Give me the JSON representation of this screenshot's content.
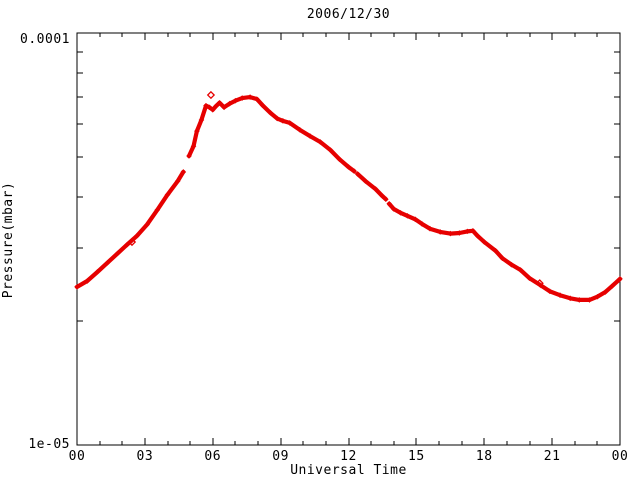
{
  "title": "2006/12/30",
  "axes": {
    "x": {
      "title": "Universal Time",
      "tick_labels": [
        "00",
        "03",
        "06",
        "09",
        "12",
        "15",
        "18",
        "21",
        "00"
      ],
      "major_hours": [
        0,
        3,
        6,
        9,
        12,
        15,
        18,
        21,
        24
      ],
      "minor_hours": [
        1,
        2,
        4,
        5,
        7,
        8,
        10,
        11,
        13,
        14,
        16,
        17,
        19,
        20,
        22,
        23
      ],
      "range_hours": [
        0,
        24
      ]
    },
    "y": {
      "title": "Pressure(mbar)",
      "scale": "log",
      "max_label": "0.0001",
      "min_label": "1e-05",
      "min": 1e-05,
      "max": 0.0001,
      "minor_tick_values": [
        2e-05,
        3e-05,
        4e-05,
        5e-05,
        6e-05,
        7e-05,
        8e-05,
        9e-05
      ]
    }
  },
  "colors": {
    "curve": "#e60000",
    "frame": "#000000",
    "background": "#ffffff"
  },
  "chart_data": {
    "type": "line",
    "title": "2006/12/30",
    "xlabel": "Universal Time",
    "ylabel": "Pressure(mbar)",
    "x_unit": "hours UT",
    "xlim": [
      0,
      24
    ],
    "ylim": [
      1e-05,
      0.0001
    ],
    "yscale": "log",
    "grid": false,
    "legend": "none",
    "marker": "diamond",
    "series": [
      {
        "name": "pressure",
        "color": "#e60000",
        "segments": [
          [
            [
              0,
              2.42e-05
            ],
            [
              0.45,
              2.5e-05
            ],
            [
              0.9,
              2.63e-05
            ],
            [
              1.35,
              2.77e-05
            ],
            [
              1.8,
              2.92e-05
            ],
            [
              2.2,
              3.06e-05
            ],
            [
              2.65,
              3.22e-05
            ],
            [
              3.1,
              3.43e-05
            ],
            [
              3.55,
              3.72e-05
            ],
            [
              4.0,
              4.05e-05
            ],
            [
              4.45,
              4.37e-05
            ],
            [
              4.7,
              4.6e-05
            ]
          ],
          [
            [
              4.95,
              5.03e-05
            ],
            [
              5.15,
              5.31e-05
            ],
            [
              5.3,
              5.78e-05
            ],
            [
              5.5,
              6.15e-05
            ],
            [
              5.7,
              6.66e-05
            ],
            [
              5.85,
              6.6e-05
            ],
            [
              6.0,
              6.51e-05
            ],
            [
              6.15,
              6.65e-05
            ],
            [
              6.3,
              6.77e-05
            ],
            [
              6.5,
              6.6e-05
            ],
            [
              6.75,
              6.74e-05
            ],
            [
              7.0,
              6.85e-05
            ],
            [
              7.3,
              6.95e-05
            ],
            [
              7.65,
              6.99e-05
            ],
            [
              7.95,
              6.91e-05
            ],
            [
              8.2,
              6.68e-05
            ],
            [
              8.55,
              6.4e-05
            ],
            [
              8.85,
              6.2e-05
            ],
            [
              9.1,
              6.12e-05
            ],
            [
              9.4,
              6.05e-05
            ],
            [
              9.85,
              5.82e-05
            ],
            [
              10.3,
              5.62e-05
            ],
            [
              10.75,
              5.44e-05
            ],
            [
              11.2,
              5.2e-05
            ],
            [
              11.6,
              4.94e-05
            ],
            [
              12.0,
              4.73e-05
            ],
            [
              12.25,
              4.62e-05
            ]
          ],
          [
            [
              12.4,
              4.55e-05
            ],
            [
              12.75,
              4.37e-05
            ],
            [
              13.2,
              4.18e-05
            ],
            [
              13.5,
              4.02e-05
            ],
            [
              13.65,
              3.95e-05
            ]
          ],
          [
            [
              13.8,
              3.85e-05
            ],
            [
              14.0,
              3.74e-05
            ],
            [
              14.3,
              3.66e-05
            ],
            [
              14.6,
              3.6e-05
            ],
            [
              14.95,
              3.53e-05
            ],
            [
              15.25,
              3.44e-05
            ],
            [
              15.6,
              3.35e-05
            ],
            [
              16.05,
              3.29e-05
            ],
            [
              16.5,
              3.26e-05
            ],
            [
              16.9,
              3.27e-05
            ],
            [
              17.25,
              3.3e-05
            ],
            [
              17.5,
              3.31e-05
            ],
            [
              17.7,
              3.22e-05
            ],
            [
              18.0,
              3.11e-05
            ],
            [
              18.5,
              2.96e-05
            ],
            [
              18.8,
              2.84e-05
            ],
            [
              19.2,
              2.74e-05
            ],
            [
              19.6,
              2.66e-05
            ],
            [
              20.0,
              2.54e-05
            ],
            [
              20.5,
              2.44e-05
            ],
            [
              20.9,
              2.36e-05
            ],
            [
              21.35,
              2.31e-05
            ],
            [
              21.8,
              2.27e-05
            ],
            [
              22.2,
              2.25e-05
            ],
            [
              22.65,
              2.25e-05
            ],
            [
              23.0,
              2.29e-05
            ],
            [
              23.35,
              2.35e-05
            ],
            [
              23.65,
              2.43e-05
            ],
            [
              24.0,
              2.53e-05
            ]
          ]
        ],
        "outlier_points": [
          [
            2.43,
            3.11e-05
          ],
          [
            5.92,
            7.07e-05
          ],
          [
            20.45,
            2.47e-05
          ]
        ]
      }
    ]
  }
}
